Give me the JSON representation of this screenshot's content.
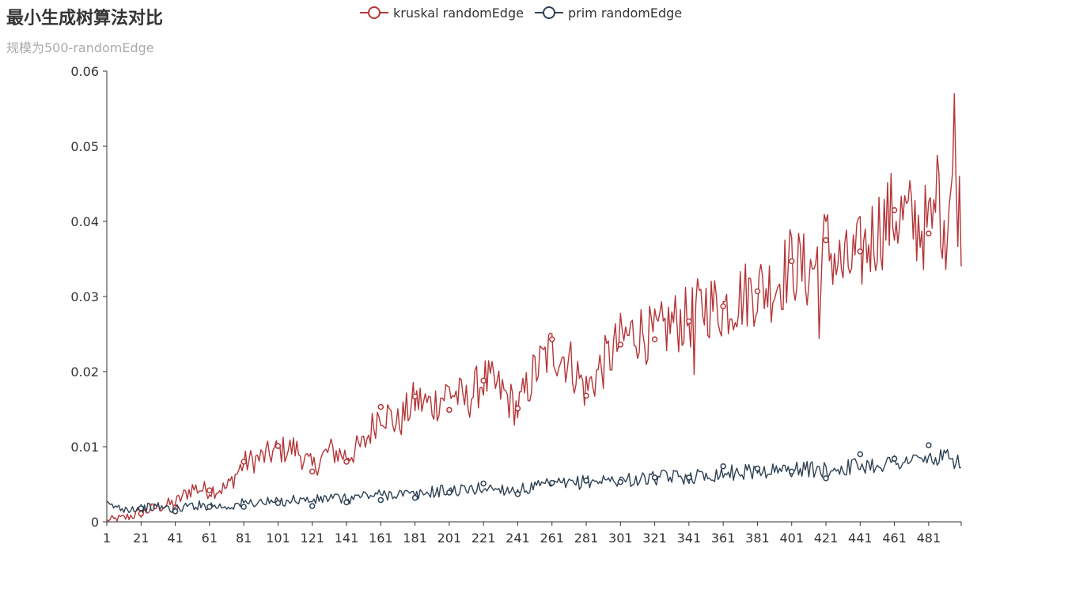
{
  "title": "最小生成树算法对比",
  "subtitle": "规模为500-randomEdge",
  "legend": [
    {
      "name": "kruskal randomEdge",
      "color": "#b53538"
    },
    {
      "name": "prim randomEdge",
      "color": "#2f4153"
    }
  ],
  "chart_data": {
    "type": "line",
    "title": "最小生成树算法对比",
    "subtitle": "规模为500-randomEdge",
    "xlabel": "",
    "ylabel": "",
    "x_range": [
      1,
      500
    ],
    "x_tick_labels": [
      "1",
      "21",
      "41",
      "61",
      "81",
      "101",
      "121",
      "141",
      "161",
      "181",
      "201",
      "221",
      "241",
      "261",
      "281",
      "301",
      "321",
      "341",
      "361",
      "381",
      "401",
      "421",
      "441",
      "461",
      "481"
    ],
    "ylim": [
      0,
      0.06
    ],
    "y_tick_labels": [
      "0",
      "0.01",
      "0.02",
      "0.03",
      "0.04",
      "0.05",
      "0.06"
    ],
    "y_ticks": [
      0,
      0.01,
      0.02,
      0.03,
      0.04,
      0.05,
      0.06
    ],
    "grid": false,
    "legend_position": "top-center",
    "series": [
      {
        "name": "kruskal randomEdge",
        "color": "#b53538",
        "x": [
          1,
          11,
          21,
          31,
          41,
          51,
          61,
          71,
          81,
          91,
          101,
          111,
          121,
          131,
          141,
          151,
          161,
          171,
          181,
          191,
          201,
          211,
          221,
          231,
          241,
          251,
          261,
          271,
          281,
          291,
          301,
          311,
          321,
          331,
          341,
          351,
          361,
          371,
          381,
          391,
          401,
          411,
          421,
          431,
          441,
          451,
          461,
          471,
          481,
          491,
          496,
          500
        ],
        "values": [
          0.0001,
          0.0005,
          0.0012,
          0.002,
          0.0025,
          0.0045,
          0.0042,
          0.0045,
          0.0078,
          0.0085,
          0.0095,
          0.0098,
          0.0072,
          0.0095,
          0.0088,
          0.0102,
          0.015,
          0.013,
          0.0162,
          0.0155,
          0.0175,
          0.016,
          0.019,
          0.0175,
          0.015,
          0.02,
          0.023,
          0.0215,
          0.0175,
          0.021,
          0.024,
          0.0255,
          0.0245,
          0.0265,
          0.027,
          0.029,
          0.0285,
          0.03,
          0.031,
          0.0315,
          0.0345,
          0.033,
          0.037,
          0.0335,
          0.0355,
          0.039,
          0.041,
          0.04,
          0.039,
          0.042,
          0.0465,
          0.04
        ],
        "markers": [
          {
            "x": 21,
            "y": 0.0011
          },
          {
            "x": 41,
            "y": 0.0019
          },
          {
            "x": 61,
            "y": 0.0042
          },
          {
            "x": 81,
            "y": 0.008
          },
          {
            "x": 101,
            "y": 0.0101
          },
          {
            "x": 121,
            "y": 0.0067
          },
          {
            "x": 141,
            "y": 0.008
          },
          {
            "x": 161,
            "y": 0.0153
          },
          {
            "x": 181,
            "y": 0.0167
          },
          {
            "x": 201,
            "y": 0.0149
          },
          {
            "x": 221,
            "y": 0.0188
          },
          {
            "x": 241,
            "y": 0.0151
          },
          {
            "x": 261,
            "y": 0.0243
          },
          {
            "x": 281,
            "y": 0.0168
          },
          {
            "x": 301,
            "y": 0.0236
          },
          {
            "x": 321,
            "y": 0.0243
          },
          {
            "x": 341,
            "y": 0.0267
          },
          {
            "x": 361,
            "y": 0.0287
          },
          {
            "x": 381,
            "y": 0.0307
          },
          {
            "x": 401,
            "y": 0.0347
          },
          {
            "x": 421,
            "y": 0.0375
          },
          {
            "x": 441,
            "y": 0.036
          },
          {
            "x": 461,
            "y": 0.0415
          },
          {
            "x": 481,
            "y": 0.0384
          }
        ]
      },
      {
        "name": "prim randomEdge",
        "color": "#2f4153",
        "x": [
          1,
          11,
          21,
          31,
          41,
          51,
          61,
          71,
          81,
          91,
          101,
          111,
          121,
          131,
          141,
          151,
          161,
          171,
          181,
          191,
          201,
          211,
          221,
          231,
          241,
          251,
          261,
          271,
          281,
          291,
          301,
          311,
          321,
          331,
          341,
          351,
          361,
          371,
          381,
          391,
          401,
          411,
          421,
          431,
          441,
          451,
          461,
          471,
          481,
          491,
          500
        ],
        "values": [
          0.0022,
          0.0018,
          0.0018,
          0.002,
          0.0017,
          0.0022,
          0.0022,
          0.002,
          0.0025,
          0.0026,
          0.0026,
          0.003,
          0.0028,
          0.0032,
          0.003,
          0.0035,
          0.0036,
          0.0038,
          0.0035,
          0.004,
          0.0042,
          0.0042,
          0.0045,
          0.0044,
          0.0042,
          0.0046,
          0.005,
          0.005,
          0.0054,
          0.0055,
          0.0056,
          0.0056,
          0.0058,
          0.006,
          0.006,
          0.0062,
          0.0065,
          0.0066,
          0.0068,
          0.0068,
          0.007,
          0.007,
          0.0068,
          0.0072,
          0.0075,
          0.0076,
          0.008,
          0.0082,
          0.0083,
          0.0085,
          0.008
        ],
        "markers": [
          {
            "x": 21,
            "y": 0.0018
          },
          {
            "x": 41,
            "y": 0.0014
          },
          {
            "x": 61,
            "y": 0.002
          },
          {
            "x": 81,
            "y": 0.002
          },
          {
            "x": 101,
            "y": 0.0025
          },
          {
            "x": 121,
            "y": 0.0021
          },
          {
            "x": 141,
            "y": 0.0026
          },
          {
            "x": 161,
            "y": 0.0029
          },
          {
            "x": 181,
            "y": 0.0032
          },
          {
            "x": 201,
            "y": 0.0039
          },
          {
            "x": 221,
            "y": 0.0051
          },
          {
            "x": 241,
            "y": 0.0037
          },
          {
            "x": 261,
            "y": 0.0052
          },
          {
            "x": 281,
            "y": 0.0055
          },
          {
            "x": 301,
            "y": 0.0053
          },
          {
            "x": 321,
            "y": 0.0059
          },
          {
            "x": 341,
            "y": 0.0059
          },
          {
            "x": 361,
            "y": 0.0074
          },
          {
            "x": 381,
            "y": 0.0071
          },
          {
            "x": 401,
            "y": 0.0067
          },
          {
            "x": 421,
            "y": 0.0058
          },
          {
            "x": 441,
            "y": 0.009
          },
          {
            "x": 461,
            "y": 0.0084
          },
          {
            "x": 481,
            "y": 0.0102
          }
        ]
      }
    ]
  }
}
